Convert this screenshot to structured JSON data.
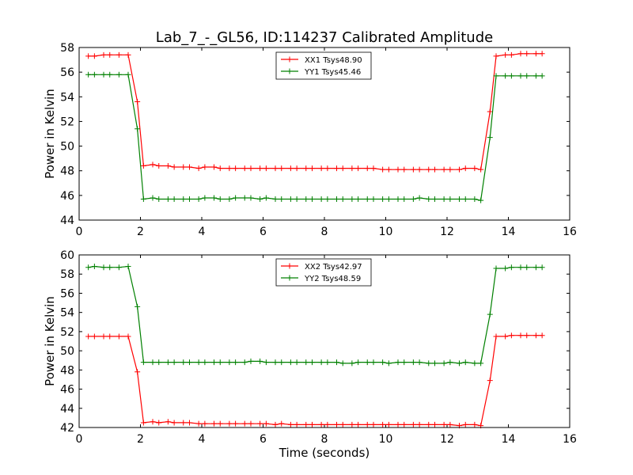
{
  "figure": {
    "title": "Lab_7_-_GL56, ID:114237 Calibrated Amplitude",
    "xlabel": "Time (seconds)"
  },
  "chart_data": [
    {
      "type": "line",
      "title": "Lab_7_-_GL56, ID:114237 Calibrated Amplitude",
      "xlabel": "",
      "ylabel": "Power in Kelvin",
      "xlim": [
        0,
        16
      ],
      "ylim": [
        44,
        58
      ],
      "xticks": [
        "0",
        "2",
        "4",
        "6",
        "8",
        "10",
        "12",
        "14",
        "16"
      ],
      "yticks": [
        "44",
        "46",
        "48",
        "50",
        "52",
        "54",
        "56",
        "58"
      ],
      "grid": false,
      "legend_position": "top-center",
      "x": [
        0.3,
        0.5,
        0.8,
        1.0,
        1.3,
        1.6,
        1.9,
        2.1,
        2.4,
        2.6,
        2.9,
        3.1,
        3.4,
        3.6,
        3.9,
        4.1,
        4.4,
        4.6,
        4.9,
        5.1,
        5.4,
        5.6,
        5.9,
        6.1,
        6.4,
        6.6,
        6.9,
        7.1,
        7.4,
        7.6,
        7.9,
        8.1,
        8.4,
        8.6,
        8.9,
        9.1,
        9.4,
        9.6,
        9.9,
        10.1,
        10.4,
        10.6,
        10.9,
        11.1,
        11.4,
        11.6,
        11.9,
        12.1,
        12.4,
        12.6,
        12.9,
        13.1,
        13.4,
        13.6,
        13.9,
        14.1,
        14.4,
        14.6,
        14.9,
        15.1
      ],
      "series": [
        {
          "name": "XX1 Tsys48.90",
          "color": "#ff0000",
          "values": [
            57.3,
            57.3,
            57.4,
            57.4,
            57.4,
            57.4,
            53.6,
            48.4,
            48.5,
            48.4,
            48.4,
            48.3,
            48.3,
            48.3,
            48.2,
            48.3,
            48.3,
            48.2,
            48.2,
            48.2,
            48.2,
            48.2,
            48.2,
            48.2,
            48.2,
            48.2,
            48.2,
            48.2,
            48.2,
            48.2,
            48.2,
            48.2,
            48.2,
            48.2,
            48.2,
            48.2,
            48.2,
            48.2,
            48.1,
            48.1,
            48.1,
            48.1,
            48.1,
            48.1,
            48.1,
            48.1,
            48.1,
            48.1,
            48.1,
            48.2,
            48.2,
            48.1,
            52.8,
            57.3,
            57.4,
            57.4,
            57.5,
            57.5,
            57.5,
            57.5
          ]
        },
        {
          "name": "YY1 Tsys45.46",
          "color": "#008000",
          "values": [
            55.8,
            55.8,
            55.8,
            55.8,
            55.8,
            55.8,
            51.4,
            45.7,
            45.8,
            45.7,
            45.7,
            45.7,
            45.7,
            45.7,
            45.7,
            45.8,
            45.8,
            45.7,
            45.7,
            45.8,
            45.8,
            45.8,
            45.7,
            45.8,
            45.7,
            45.7,
            45.7,
            45.7,
            45.7,
            45.7,
            45.7,
            45.7,
            45.7,
            45.7,
            45.7,
            45.7,
            45.7,
            45.7,
            45.7,
            45.7,
            45.7,
            45.7,
            45.7,
            45.8,
            45.7,
            45.7,
            45.7,
            45.7,
            45.7,
            45.7,
            45.7,
            45.6,
            50.7,
            55.7,
            55.7,
            55.7,
            55.7,
            55.7,
            55.7,
            55.7
          ]
        }
      ]
    },
    {
      "type": "line",
      "title": "",
      "xlabel": "Time (seconds)",
      "ylabel": "Power in Kelvin",
      "xlim": [
        0,
        16
      ],
      "ylim": [
        42,
        60
      ],
      "xticks": [
        "0",
        "2",
        "4",
        "6",
        "8",
        "10",
        "12",
        "14",
        "16"
      ],
      "yticks": [
        "42",
        "44",
        "46",
        "48",
        "50",
        "52",
        "54",
        "56",
        "58",
        "60"
      ],
      "grid": false,
      "legend_position": "top-center",
      "x": [
        0.3,
        0.5,
        0.8,
        1.0,
        1.3,
        1.6,
        1.9,
        2.1,
        2.4,
        2.6,
        2.9,
        3.1,
        3.4,
        3.6,
        3.9,
        4.1,
        4.4,
        4.6,
        4.9,
        5.1,
        5.4,
        5.6,
        5.9,
        6.1,
        6.4,
        6.6,
        6.9,
        7.1,
        7.4,
        7.6,
        7.9,
        8.1,
        8.4,
        8.6,
        8.9,
        9.1,
        9.4,
        9.6,
        9.9,
        10.1,
        10.4,
        10.6,
        10.9,
        11.1,
        11.4,
        11.6,
        11.9,
        12.1,
        12.4,
        12.6,
        12.9,
        13.1,
        13.4,
        13.6,
        13.9,
        14.1,
        14.4,
        14.6,
        14.9,
        15.1
      ],
      "series": [
        {
          "name": "XX2 Tsys42.97",
          "color": "#ff0000",
          "values": [
            51.5,
            51.5,
            51.5,
            51.5,
            51.5,
            51.5,
            47.8,
            42.5,
            42.6,
            42.5,
            42.6,
            42.5,
            42.5,
            42.5,
            42.4,
            42.4,
            42.4,
            42.4,
            42.4,
            42.4,
            42.4,
            42.4,
            42.4,
            42.4,
            42.3,
            42.4,
            42.3,
            42.3,
            42.3,
            42.3,
            42.3,
            42.3,
            42.3,
            42.3,
            42.3,
            42.3,
            42.3,
            42.3,
            42.3,
            42.3,
            42.3,
            42.3,
            42.3,
            42.3,
            42.3,
            42.3,
            42.3,
            42.3,
            42.2,
            42.3,
            42.3,
            42.2,
            46.9,
            51.5,
            51.5,
            51.6,
            51.6,
            51.6,
            51.6,
            51.6
          ]
        },
        {
          "name": "YY2 Tsys48.59",
          "color": "#008000",
          "values": [
            58.7,
            58.8,
            58.7,
            58.7,
            58.7,
            58.8,
            54.6,
            48.8,
            48.8,
            48.8,
            48.8,
            48.8,
            48.8,
            48.8,
            48.8,
            48.8,
            48.8,
            48.8,
            48.8,
            48.8,
            48.8,
            48.9,
            48.9,
            48.8,
            48.8,
            48.8,
            48.8,
            48.8,
            48.8,
            48.8,
            48.8,
            48.8,
            48.8,
            48.7,
            48.7,
            48.8,
            48.8,
            48.8,
            48.8,
            48.7,
            48.8,
            48.8,
            48.8,
            48.8,
            48.7,
            48.7,
            48.7,
            48.8,
            48.7,
            48.8,
            48.7,
            48.7,
            53.8,
            58.6,
            58.6,
            58.7,
            58.7,
            58.7,
            58.7,
            58.7
          ]
        }
      ]
    }
  ]
}
